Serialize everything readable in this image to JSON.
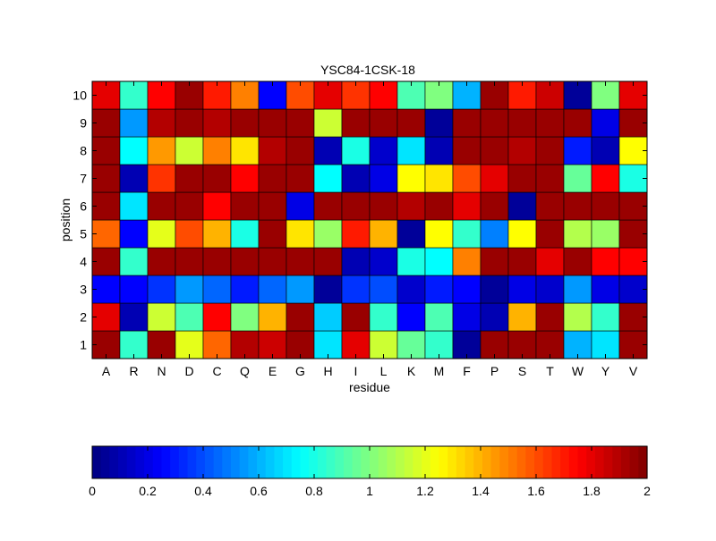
{
  "chart_data": {
    "type": "heatmap",
    "title": "YSC84-1CSK-18",
    "xlabel": "residue",
    "ylabel": "position",
    "x_categories": [
      "A",
      "R",
      "N",
      "D",
      "C",
      "Q",
      "E",
      "G",
      "H",
      "I",
      "L",
      "K",
      "M",
      "F",
      "P",
      "S",
      "T",
      "W",
      "Y",
      "V"
    ],
    "y_categories": [
      "1",
      "2",
      "3",
      "4",
      "5",
      "6",
      "7",
      "8",
      "9",
      "10"
    ],
    "values": [
      [
        1.95,
        0.85,
        1.95,
        1.2,
        1.55,
        1.9,
        1.85,
        1.95,
        0.7,
        1.8,
        1.15,
        0.95,
        0.85,
        0.05,
        1.95,
        1.95,
        1.95,
        0.6,
        0.7,
        1.95
      ],
      [
        1.8,
        0.1,
        1.15,
        0.9,
        1.75,
        1.0,
        1.4,
        1.95,
        0.65,
        1.95,
        0.85,
        0.25,
        0.9,
        0.2,
        0.1,
        1.4,
        1.95,
        1.1,
        0.85,
        1.95
      ],
      [
        0.25,
        0.25,
        0.35,
        0.55,
        0.45,
        0.3,
        0.45,
        0.55,
        0.05,
        0.35,
        0.4,
        0.15,
        0.3,
        0.25,
        0.05,
        0.2,
        0.15,
        0.55,
        0.2,
        0.15
      ],
      [
        1.95,
        0.85,
        1.95,
        1.95,
        1.95,
        1.95,
        1.95,
        1.95,
        1.95,
        0.1,
        0.15,
        0.8,
        0.75,
        1.5,
        1.95,
        1.95,
        1.8,
        1.95,
        1.75,
        1.75
      ],
      [
        1.55,
        0.25,
        1.2,
        1.6,
        1.4,
        0.8,
        1.95,
        1.3,
        1.05,
        1.7,
        1.4,
        0.05,
        1.25,
        0.85,
        0.5,
        1.25,
        1.95,
        1.1,
        1.05,
        1.95
      ],
      [
        1.95,
        0.7,
        1.95,
        1.95,
        1.75,
        1.95,
        1.95,
        0.2,
        1.95,
        1.95,
        1.95,
        1.9,
        1.95,
        1.8,
        1.95,
        0.05,
        1.95,
        1.95,
        1.95,
        1.95
      ],
      [
        1.95,
        0.1,
        1.65,
        1.95,
        1.95,
        1.75,
        1.95,
        1.95,
        0.75,
        0.1,
        0.2,
        1.25,
        1.3,
        1.6,
        1.8,
        1.95,
        1.95,
        0.95,
        1.75,
        0.8
      ],
      [
        1.95,
        0.75,
        1.45,
        1.15,
        1.5,
        1.3,
        1.9,
        1.95,
        0.1,
        0.8,
        0.15,
        0.7,
        0.1,
        1.95,
        1.95,
        1.9,
        1.95,
        0.3,
        0.1,
        1.25
      ],
      [
        1.95,
        0.55,
        1.9,
        1.95,
        1.9,
        1.95,
        1.95,
        1.95,
        1.15,
        1.95,
        1.95,
        1.95,
        0.05,
        1.95,
        1.95,
        1.95,
        1.95,
        1.95,
        0.2,
        1.95
      ],
      [
        1.8,
        0.85,
        1.75,
        1.95,
        1.7,
        1.5,
        0.25,
        1.6,
        1.8,
        1.65,
        1.75,
        0.9,
        1.0,
        0.6,
        1.95,
        1.7,
        1.85,
        0.05,
        1.0,
        1.8
      ]
    ],
    "colorbar": {
      "range": [
        0,
        2
      ],
      "ticks": [
        "0",
        "0.2",
        "0.4",
        "0.6",
        "0.8",
        "1",
        "1.2",
        "1.4",
        "1.6",
        "1.8",
        "2"
      ],
      "colormap": "jet",
      "placement": "bottom"
    },
    "grid": false
  }
}
